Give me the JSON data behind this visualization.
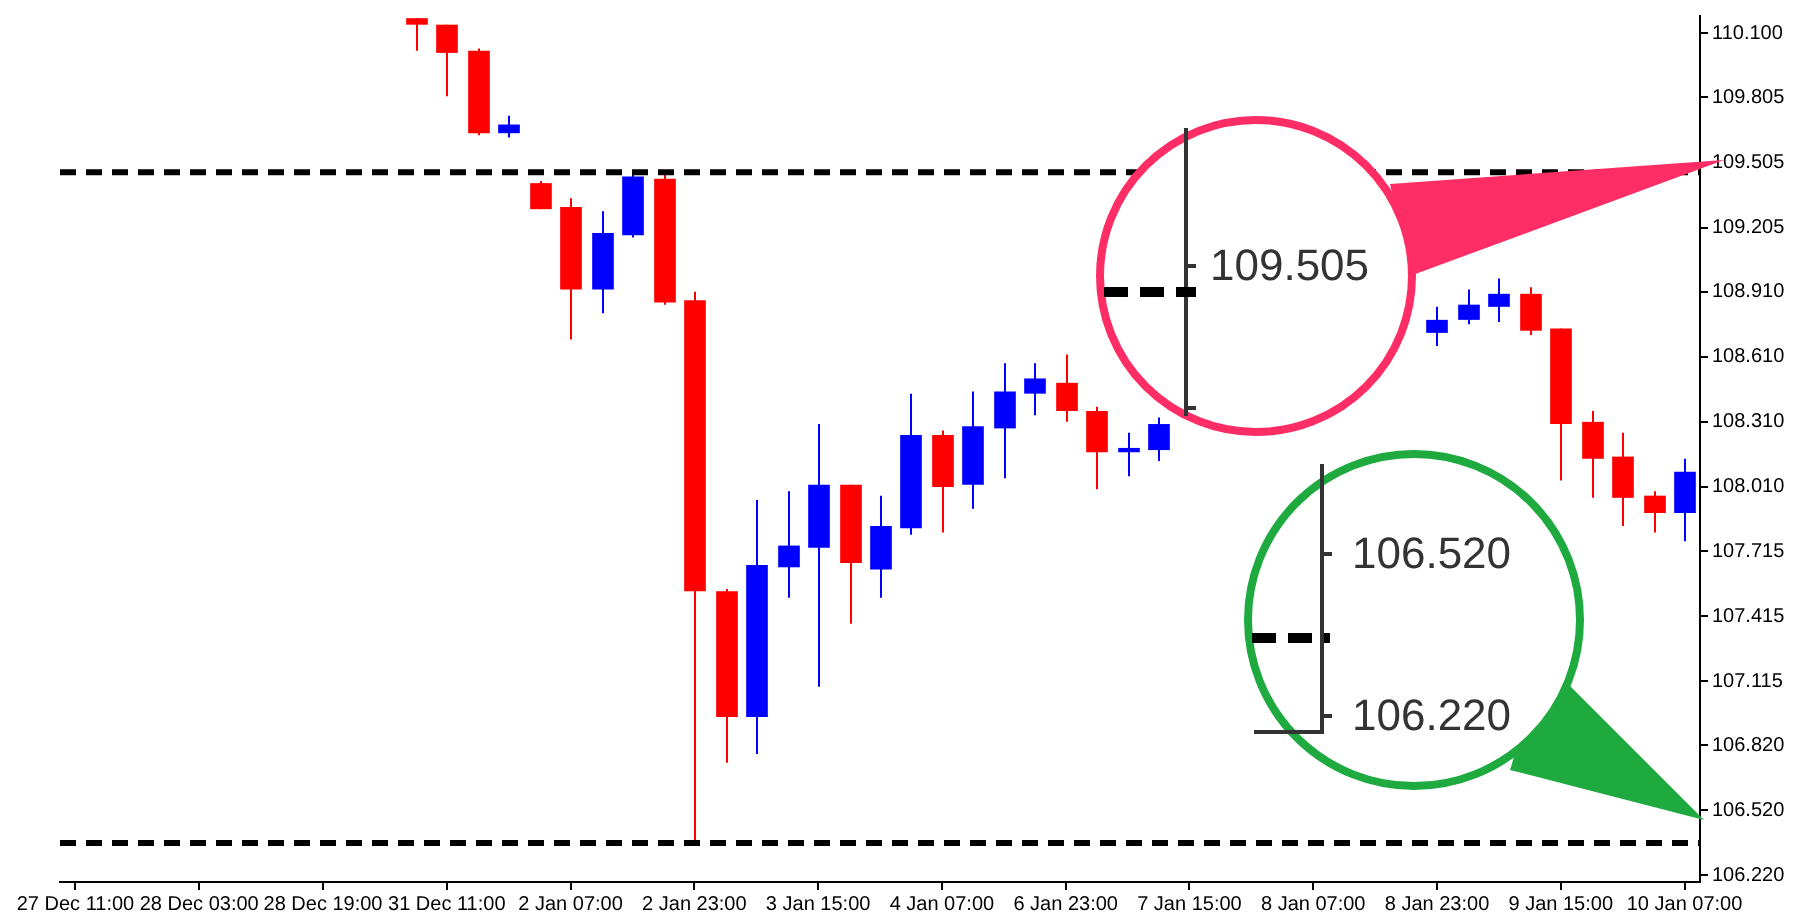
{
  "chart_data": {
    "type": "candlestick",
    "categories": [
      "27 Dec 11:00",
      null,
      null,
      null,
      "28 Dec 03:00",
      null,
      null,
      null,
      "28 Dec 19:00",
      null,
      null,
      null,
      "31 Dec 11:00",
      null,
      null,
      null,
      "2 Jan 07:00",
      null,
      null,
      null,
      "2 Jan 23:00",
      null,
      null,
      null,
      "3 Jan 15:00",
      null,
      null,
      null,
      "4 Jan 07:00",
      null,
      null,
      null,
      "6 Jan 23:00",
      null,
      null,
      null,
      "7 Jan 15:00",
      null,
      null,
      null,
      "8 Jan 07:00",
      null,
      null,
      null,
      "8 Jan 23:00",
      null,
      null,
      null,
      "9 Jan 15:00",
      null,
      null,
      null,
      "10 Jan 07:00"
    ],
    "ohlc": [
      null,
      null,
      null,
      null,
      null,
      null,
      null,
      null,
      null,
      null,
      null,
      [
        110.17,
        110.17,
        110.02,
        110.14
      ],
      [
        110.14,
        110.14,
        109.81,
        110.01
      ],
      [
        110.02,
        110.03,
        109.63,
        109.64
      ],
      [
        109.64,
        109.72,
        109.62,
        109.68
      ],
      [
        109.41,
        109.42,
        109.29,
        109.29
      ],
      [
        109.3,
        109.34,
        108.69,
        108.92
      ],
      [
        108.92,
        109.28,
        108.81,
        109.18
      ],
      [
        109.17,
        109.46,
        109.16,
        109.44
      ],
      [
        109.43,
        109.45,
        108.85,
        108.86
      ],
      [
        108.87,
        108.91,
        106.37,
        107.53
      ],
      [
        107.53,
        107.54,
        106.74,
        106.95
      ],
      [
        106.95,
        107.95,
        106.78,
        107.65
      ],
      [
        107.64,
        107.99,
        107.5,
        107.74
      ],
      [
        107.73,
        108.3,
        107.09,
        108.02
      ],
      [
        108.02,
        108.02,
        107.38,
        107.66
      ],
      [
        107.63,
        107.97,
        107.5,
        107.83
      ],
      [
        107.82,
        108.44,
        107.79,
        108.25
      ],
      [
        108.25,
        108.27,
        107.8,
        108.01
      ],
      [
        108.02,
        108.45,
        107.91,
        108.29
      ],
      [
        108.28,
        108.58,
        108.05,
        108.45
      ],
      [
        108.44,
        108.58,
        108.34,
        108.51
      ],
      [
        108.49,
        108.62,
        108.31,
        108.36
      ],
      [
        108.36,
        108.38,
        108.0,
        108.17
      ],
      [
        108.17,
        108.26,
        108.06,
        108.19
      ],
      [
        108.18,
        108.33,
        108.13,
        108.3
      ],
      null,
      null,
      null,
      null,
      null,
      null,
      null,
      null,
      [
        108.72,
        108.84,
        108.66,
        108.78
      ],
      [
        108.78,
        108.92,
        108.76,
        108.85
      ],
      [
        108.84,
        108.97,
        108.77,
        108.9
      ],
      [
        108.9,
        108.93,
        108.71,
        108.73
      ],
      [
        108.74,
        108.74,
        108.04,
        108.3
      ],
      [
        108.31,
        108.36,
        107.96,
        108.14
      ],
      [
        108.15,
        108.26,
        107.83,
        107.96
      ],
      [
        107.97,
        107.99,
        107.8,
        107.89
      ],
      [
        107.89,
        108.14,
        107.76,
        108.08
      ]
    ],
    "colors": [
      null,
      null,
      null,
      null,
      null,
      null,
      null,
      null,
      null,
      null,
      null,
      "#ff0000",
      "#ff0000",
      "#ff0000",
      "#0000ff",
      "#ff0000",
      "#ff0000",
      "#0000ff",
      "#0000ff",
      "#ff0000",
      "#ff0000",
      "#ff0000",
      "#0000ff",
      "#0000ff",
      "#0000ff",
      "#ff0000",
      "#0000ff",
      "#0000ff",
      "#ff0000",
      "#0000ff",
      "#0000ff",
      "#0000ff",
      "#ff0000",
      "#ff0000",
      "#0000ff",
      "#0000ff",
      null,
      null,
      null,
      null,
      null,
      null,
      null,
      null,
      "#0000ff",
      "#0000ff",
      "#0000ff",
      "#ff0000",
      "#ff0000",
      "#ff0000",
      "#ff0000",
      "#ff0000",
      "#0000ff"
    ],
    "ylim": [
      106.19,
      110.18
    ],
    "yticks": [
      {
        "value": 110.1,
        "label": "110.100"
      },
      {
        "value": 109.805,
        "label": "109.805"
      },
      {
        "value": 109.505,
        "label": "109.505"
      },
      {
        "value": 109.205,
        "label": "109.205"
      },
      {
        "value": 108.91,
        "label": "108.910"
      },
      {
        "value": 108.61,
        "label": "108.610"
      },
      {
        "value": 108.31,
        "label": "108.310"
      },
      {
        "value": 108.01,
        "label": "108.010"
      },
      {
        "value": 107.715,
        "label": "107.715"
      },
      {
        "value": 107.415,
        "label": "107.415"
      },
      {
        "value": 107.115,
        "label": "107.115"
      },
      {
        "value": 106.82,
        "label": "106.820"
      },
      {
        "value": 106.52,
        "label": "106.520"
      },
      {
        "value": 106.22,
        "label": "106.220"
      }
    ],
    "ref_lines": [
      {
        "axis": "y",
        "value": 109.46,
        "color": "#000000",
        "line_style": "dashed"
      },
      {
        "axis": "y",
        "value": 106.37,
        "color": "#000000",
        "line_style": "dashed"
      }
    ],
    "annotations": [
      "109.505",
      "106.520",
      "106.220"
    ]
  }
}
